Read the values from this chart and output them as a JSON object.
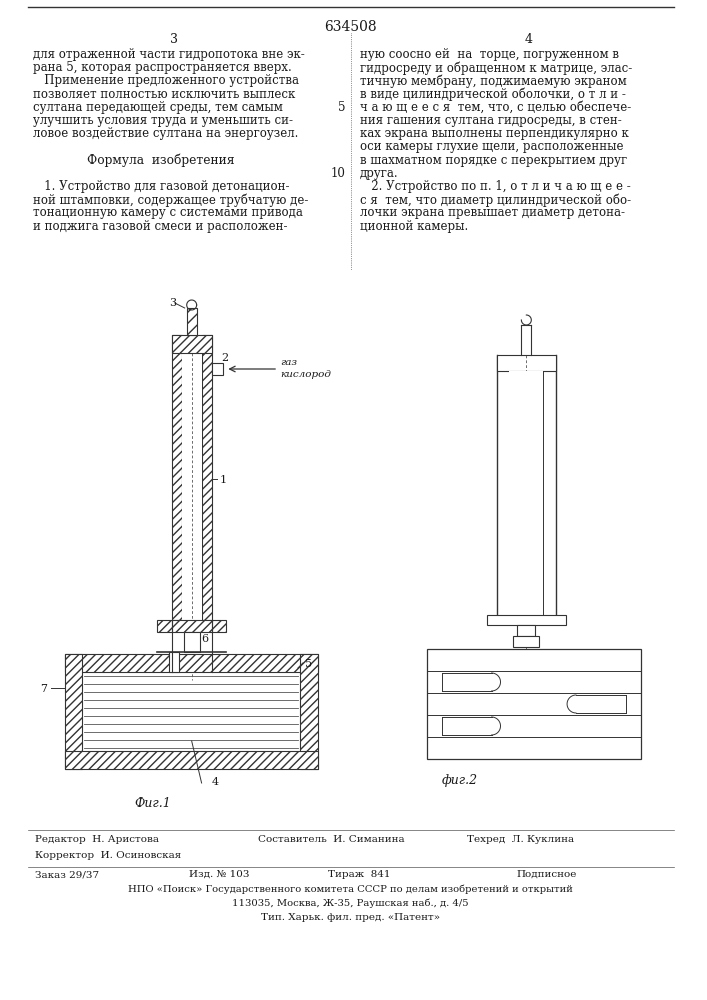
{
  "title": "634508",
  "page_left": "3",
  "page_right": "4",
  "bg_color": "#ffffff",
  "text_color": "#1a1a1a",
  "line_color": "#333333",
  "left_col_text": [
    "для отраженной части гидропотока вне эк-",
    "рана 5, которая распространяется вверх.",
    "   Применение предложенного устройства",
    "позволяет полностью исключить выплеск",
    "султана передающей среды, тем самым",
    "улучшить условия труда и уменьшить си-",
    "ловое воздействие султана на энергоузел.",
    "",
    "      Формула  изобретения",
    "",
    "   1. Устройство для газовой детонацион-",
    "ной штамповки, содержащее трубчатую де-",
    "тонационную камеру с системами привода",
    "и поджига газовой смеси и расположен-"
  ],
  "right_col_text": [
    "ную соосно ей  на  торце, погруженном в",
    "гидросреду и обращенном к матрице, элас-",
    "тичную мембрану, поджимаемую экраном",
    "в виде цилиндрической оболочки, о т л и -",
    "ч а ю щ е е с я  тем, что, с целью обеспече-",
    "ния гашения султана гидросреды, в стен-",
    "ках экрана выполнены перпендикулярно к",
    "оси камеры глухие щели, расположенные",
    "в шахматном порядке с перекрытием друг",
    "друга.",
    "   2. Устройство по п. 1, о т л и ч а ю щ е е -",
    "с я  тем, что диаметр цилиндрической обо-",
    "лочки экрана превышает диаметр детона-",
    "ционной камеры."
  ],
  "footer_editor": "Редактор  Н. Аристова",
  "footer_composer": "Составитель  И. Симанина",
  "footer_tech": "Техред  Л. Куклина",
  "footer_corrector": "Корректор  И. Осиновская",
  "footer_order": "Заказ 29/37",
  "footer_izd": "Изд. № 103",
  "footer_tirazh": "Тираж  841",
  "footer_podpis": "Подписное",
  "footer_npo": "НПО «Поиск» Государственного комитета СССР по делам изобретений и открытий",
  "footer_address": "113035, Москва, Ж-35, Раушская наб., д. 4/5",
  "footer_tip": "Тип. Харьк. фил. пред. «Патент»"
}
